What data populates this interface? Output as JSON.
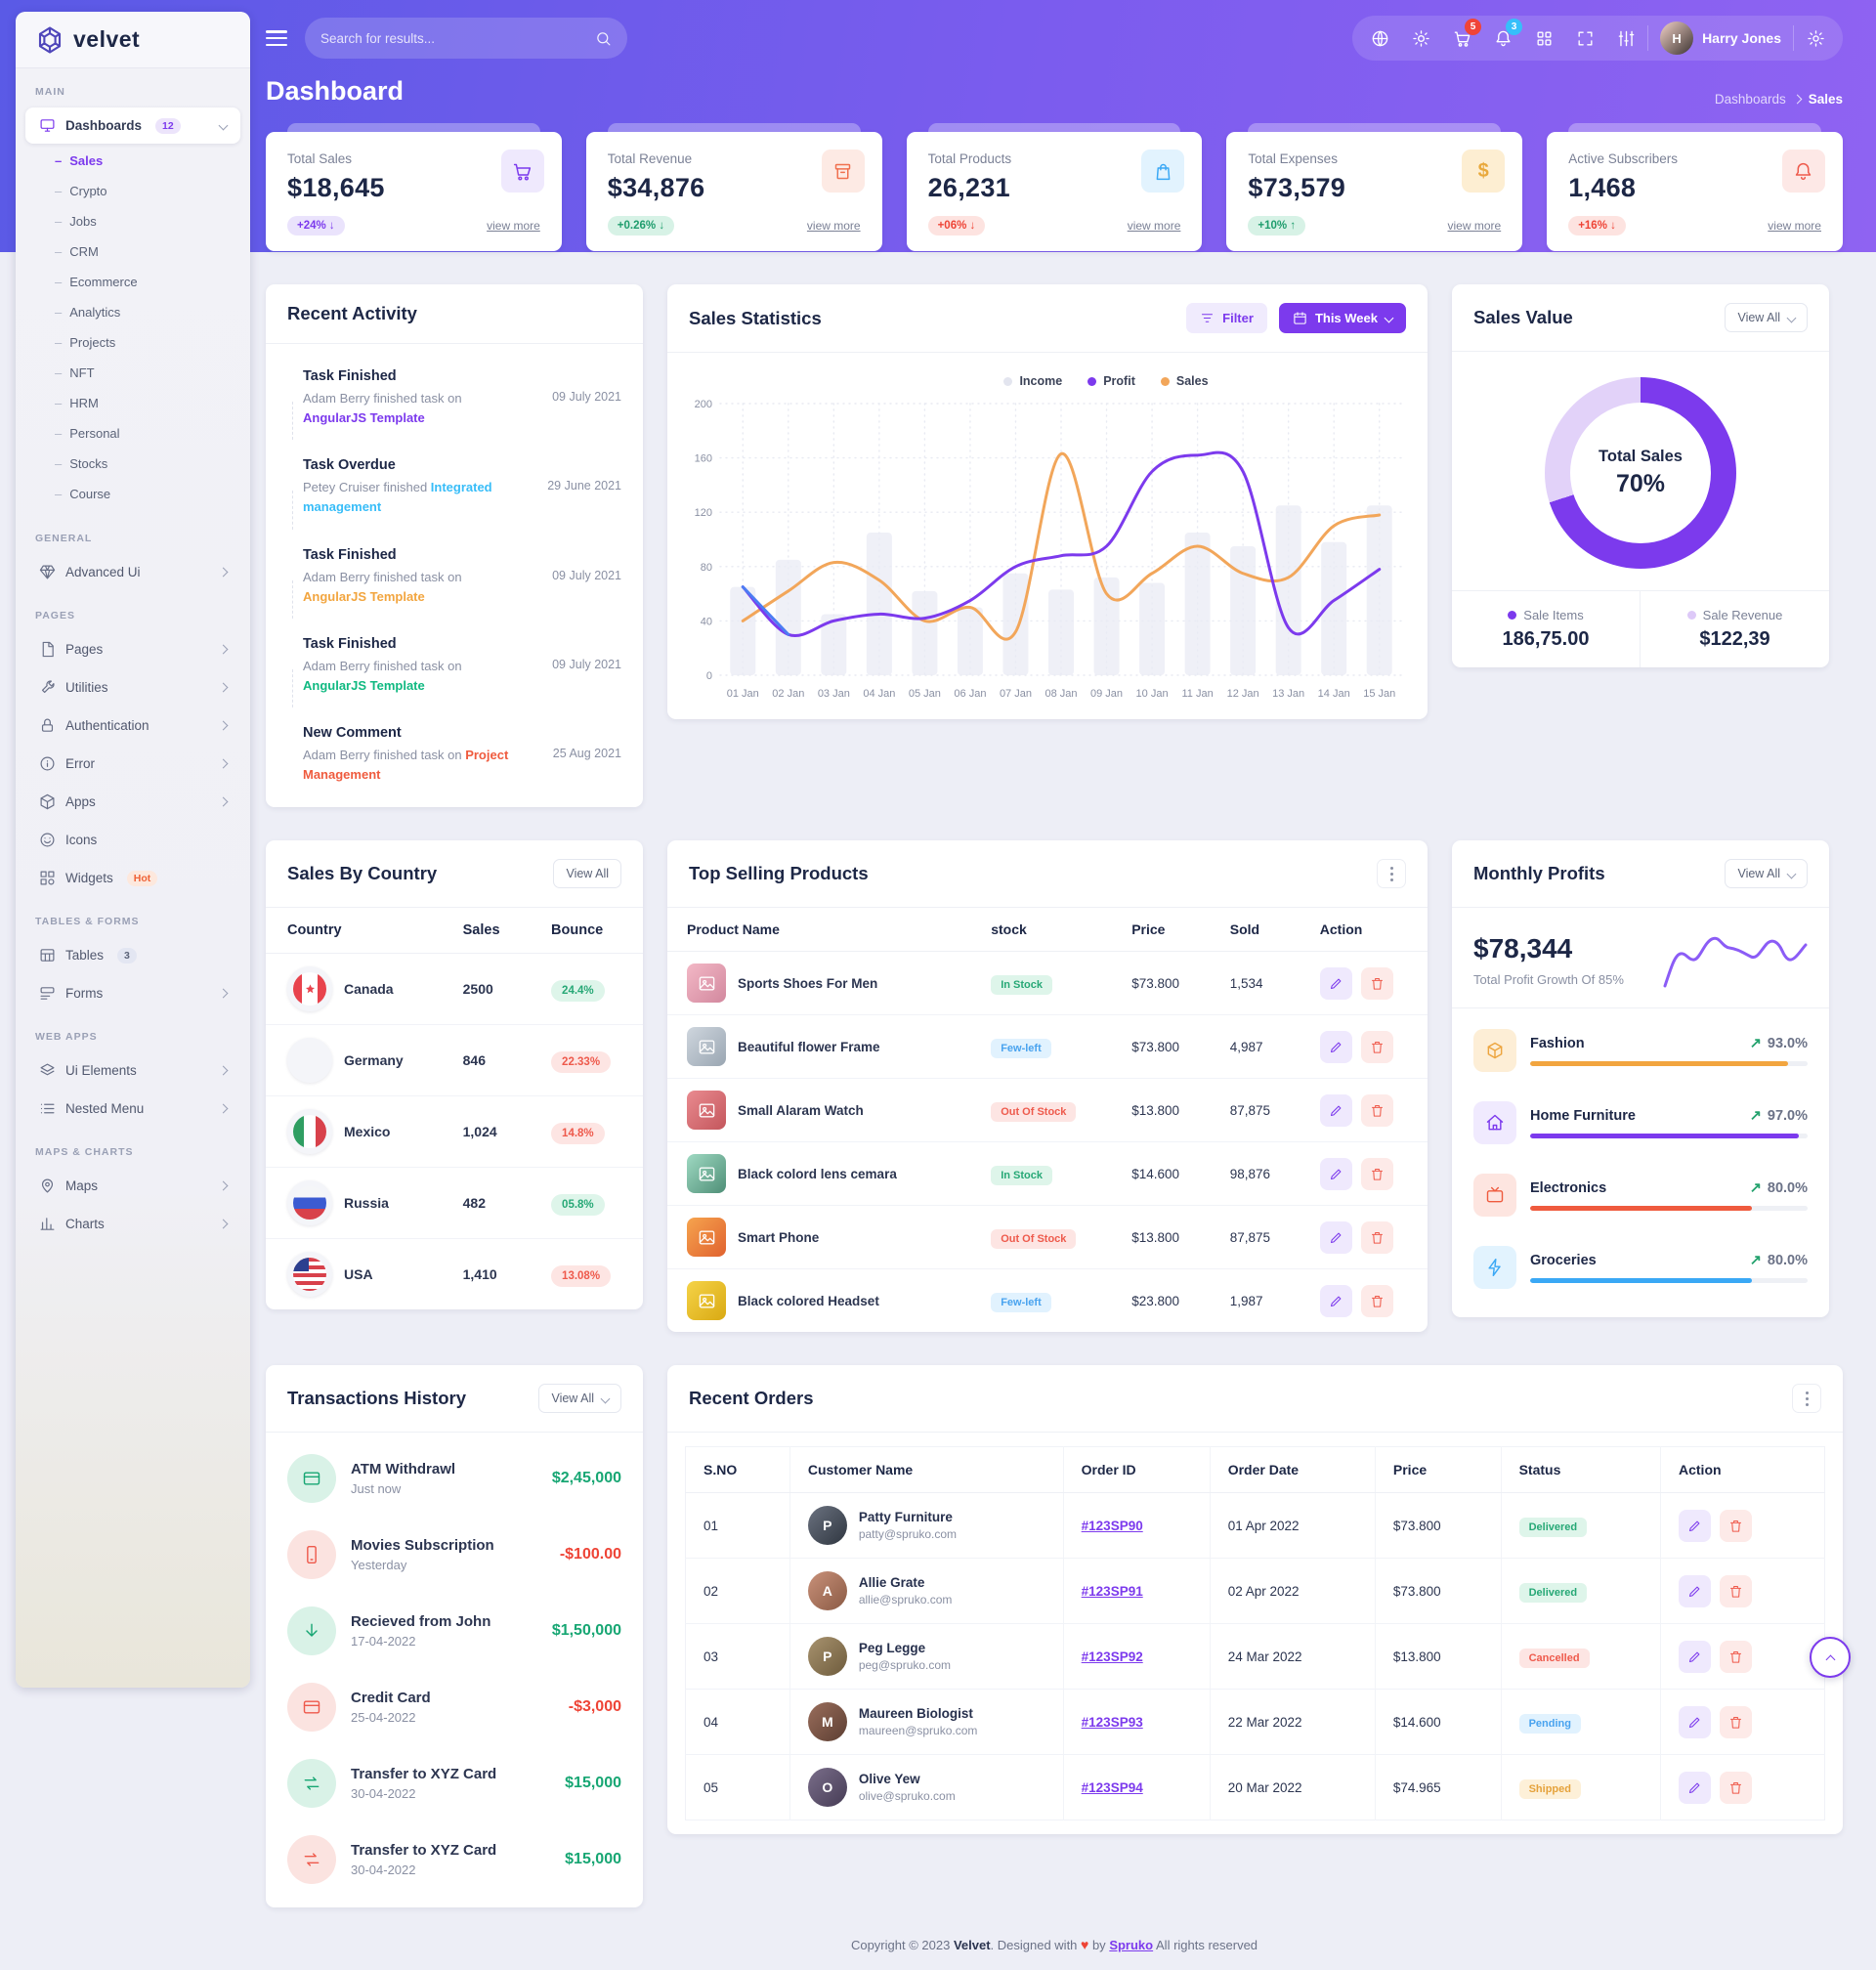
{
  "app": {
    "brand": "velvet"
  },
  "navbar": {
    "search_placeholder": "Search for results...",
    "cart_badge": "5",
    "bell_badge": "3",
    "user_name": "Harry Jones"
  },
  "page": {
    "title": "Dashboard",
    "breadcrumb_parent": "Dashboards",
    "breadcrumb_current": "Sales"
  },
  "sidebar": {
    "main_label": "MAIN",
    "dashboards": "Dashboards",
    "dashboards_badge": "12",
    "subs": [
      "Sales",
      "Crypto",
      "Jobs",
      "CRM",
      "Ecommerce",
      "Analytics",
      "Projects",
      "NFT",
      "HRM",
      "Personal",
      "Stocks",
      "Course"
    ],
    "general_label": "GENERAL",
    "advanced": "Advanced Ui",
    "pages_label": "PAGES",
    "pages": [
      "Pages",
      "Utilities",
      "Authentication",
      "Error",
      "Apps",
      "Icons",
      "Widgets"
    ],
    "hot": "Hot",
    "tables_label": "TABLES & FORMS",
    "tables": "Tables",
    "tables_badge": "3",
    "forms": "Forms",
    "webapps_label": "WEB APPS",
    "ui_elements": "Ui Elements",
    "nested": "Nested Menu",
    "maps_label": "MAPS & CHARTS",
    "maps": "Maps",
    "charts": "Charts"
  },
  "stats": [
    {
      "label": "Total Sales",
      "value": "$18,645",
      "delta": "+24% ↓",
      "link": "view more"
    },
    {
      "label": "Total Revenue",
      "value": "$34,876",
      "delta": "+0.26% ↓",
      "link": "view more"
    },
    {
      "label": "Total Products",
      "value": "26,231",
      "delta": "+06% ↓",
      "link": "view more"
    },
    {
      "label": "Total Expenses",
      "value": "$73,579",
      "delta": "+10% ↑",
      "link": "view more"
    },
    {
      "label": "Active Subscribers",
      "value": "1,468",
      "delta": "+16% ↓",
      "link": "view more"
    }
  ],
  "recent_activity": {
    "title": "Recent Activity",
    "items": [
      {
        "title": "Task Finished",
        "text": "Adam Berry finished task on ",
        "keyword": "AngularJS Template",
        "date": "09 July 2021"
      },
      {
        "title": "Task Overdue",
        "text": "Petey Cruiser finished ",
        "keyword": "Integrated management",
        "date": "29 June 2021"
      },
      {
        "title": "Task Finished",
        "text": "Adam Berry finished task on ",
        "keyword": "AngularJS Template",
        "date": "09 July 2021"
      },
      {
        "title": "Task Finished",
        "text": "Adam Berry finished task on ",
        "keyword": "AngularJS Template",
        "date": "09 July 2021"
      },
      {
        "title": "New Comment",
        "text": "Adam Berry finished task on ",
        "keyword": "Project Management",
        "date": "25 Aug 2021"
      }
    ]
  },
  "sales_statistics": {
    "title": "Sales Statistics",
    "filter_label": "Filter",
    "range_label": "This Week",
    "legend": [
      "Income",
      "Profit",
      "Sales"
    ]
  },
  "sales_value": {
    "title": "Sales Value",
    "view_all": "View All",
    "center_label": "Total Sales",
    "center_value": "70%",
    "items_label": "Sale Items",
    "items_value": "186,75.00",
    "revenue_label": "Sale Revenue",
    "revenue_value": "$122,39"
  },
  "sales_by_country": {
    "title": "Sales By Country",
    "view_all": "View All",
    "headers": [
      "Country",
      "Sales",
      "Bounce"
    ],
    "rows": [
      {
        "country": "Canada",
        "sales": "2500",
        "bounce": "24.4%"
      },
      {
        "country": "Germany",
        "sales": "846",
        "bounce": "22.33%"
      },
      {
        "country": "Mexico",
        "sales": "1,024",
        "bounce": "14.8%"
      },
      {
        "country": "Russia",
        "sales": "482",
        "bounce": "05.8%"
      },
      {
        "country": "USA",
        "sales": "1,410",
        "bounce": "13.08%"
      }
    ]
  },
  "top_selling": {
    "title": "Top Selling Products",
    "headers": [
      "Product Name",
      "stock",
      "Price",
      "Sold",
      "Action"
    ],
    "rows": [
      {
        "name": "Sports Shoes For Men",
        "stock": "In Stock",
        "price": "$73.800",
        "sold": "1,534"
      },
      {
        "name": "Beautiful flower Frame",
        "stock": "Few-left",
        "price": "$73.800",
        "sold": "4,987"
      },
      {
        "name": "Small Alaram Watch",
        "stock": "Out Of Stock",
        "price": "$13.800",
        "sold": "87,875"
      },
      {
        "name": "Black colord lens cemara",
        "stock": "In Stock",
        "price": "$14.600",
        "sold": "98,876"
      },
      {
        "name": "Smart Phone",
        "stock": "Out Of Stock",
        "price": "$13.800",
        "sold": "87,875"
      },
      {
        "name": "Black colored Headset",
        "stock": "Few-left",
        "price": "$23.800",
        "sold": "1,987"
      }
    ]
  },
  "monthly_profits": {
    "title": "Monthly Profits",
    "view_all": "View All",
    "amount": "$78,344",
    "subtitle": "Total Profit Growth Of 85%",
    "rows": [
      {
        "name": "Fashion",
        "pct": "93.0%"
      },
      {
        "name": "Home Furniture",
        "pct": "97.0%"
      },
      {
        "name": "Electronics",
        "pct": "80.0%"
      },
      {
        "name": "Groceries",
        "pct": "80.0%"
      }
    ]
  },
  "transactions": {
    "title": "Transactions History",
    "view_all": "View All",
    "rows": [
      {
        "name": "ATM Withdrawl",
        "date": "Just now",
        "amount": "$2,45,000"
      },
      {
        "name": "Movies Subscription",
        "date": "Yesterday",
        "amount": "-$100.00"
      },
      {
        "name": "Recieved from John",
        "date": "17-04-2022",
        "amount": "$1,50,000"
      },
      {
        "name": "Credit Card",
        "date": "25-04-2022",
        "amount": "-$3,000"
      },
      {
        "name": "Transfer to XYZ Card",
        "date": "30-04-2022",
        "amount": "$15,000"
      },
      {
        "name": "Transfer to XYZ Card",
        "date": "30-04-2022",
        "amount": "$15,000"
      }
    ]
  },
  "recent_orders": {
    "title": "Recent Orders",
    "headers": [
      "S.NO",
      "Customer Name",
      "Order ID",
      "Order Date",
      "Price",
      "Status",
      "Action"
    ],
    "rows": [
      {
        "sno": "01",
        "name": "Patty Furniture",
        "email": "patty@spruko.com",
        "order_id": "#123SP90",
        "date": "01 Apr 2022",
        "price": "$73.800",
        "status": "Delivered"
      },
      {
        "sno": "02",
        "name": "Allie Grate",
        "email": "allie@spruko.com",
        "order_id": "#123SP91",
        "date": "02 Apr 2022",
        "price": "$73.800",
        "status": "Delivered"
      },
      {
        "sno": "03",
        "name": "Peg Legge",
        "email": "peg@spruko.com",
        "order_id": "#123SP92",
        "date": "24 Mar 2022",
        "price": "$13.800",
        "status": "Cancelled"
      },
      {
        "sno": "04",
        "name": "Maureen Biologist",
        "email": "maureen@spruko.com",
        "order_id": "#123SP93",
        "date": "22 Mar 2022",
        "price": "$14.600",
        "status": "Pending"
      },
      {
        "sno": "05",
        "name": "Olive Yew",
        "email": "olive@spruko.com",
        "order_id": "#123SP94",
        "date": "20 Mar 2022",
        "price": "$74.965",
        "status": "Shipped"
      }
    ]
  },
  "footer": {
    "copyright": "Copyright © 2023 ",
    "brand": "Velvet",
    "designed": ". Designed with ",
    "heart": "♥",
    "by": " by ",
    "spruko": "Spruko",
    "rights": " All rights reserved"
  },
  "chart_data": [
    {
      "id": "sales_statistics",
      "type": "line",
      "x": [
        "01 Jan",
        "02 Jan",
        "03 Jan",
        "04 Jan",
        "05 Jan",
        "06 Jan",
        "07 Jan",
        "08 Jan",
        "09 Jan",
        "10 Jan",
        "11 Jan",
        "12 Jan",
        "13 Jan",
        "14 Jan",
        "15 Jan"
      ],
      "series": [
        {
          "name": "Income",
          "type": "bar",
          "values": [
            65,
            85,
            45,
            105,
            62,
            50,
            75,
            63,
            72,
            68,
            105,
            95,
            125,
            98,
            125
          ]
        },
        {
          "name": "Profit",
          "type": "line",
          "values": [
            65,
            30,
            40,
            45,
            42,
            55,
            80,
            88,
            95,
            150,
            162,
            150,
            35,
            55,
            78
          ]
        },
        {
          "name": "Sales",
          "type": "line",
          "values": [
            40,
            62,
            83,
            70,
            40,
            50,
            32,
            163,
            60,
            75,
            95,
            75,
            72,
            110,
            118
          ]
        }
      ],
      "ylim": [
        0,
        200
      ],
      "yticks": [
        0,
        40,
        80,
        120,
        160,
        200
      ],
      "legend_position": "top",
      "grid": true
    },
    {
      "id": "sales_value_donut",
      "type": "pie",
      "labels": [
        "Sale Items",
        "Sale Revenue"
      ],
      "values": [
        70,
        30
      ],
      "title": "Total Sales 70%"
    },
    {
      "id": "monthly_profits_progress",
      "type": "bar",
      "categories": [
        "Fashion",
        "Home Furniture",
        "Electronics",
        "Groceries"
      ],
      "values": [
        93,
        97,
        80,
        80
      ],
      "ylim": [
        0,
        100
      ]
    }
  ],
  "colors": {
    "accent": "#7c3aed",
    "accent_light": "#e2d2f9",
    "header_gradient_start": "#5a5ae6",
    "header_gradient_end": "#8f63f2",
    "success": "#23a26d",
    "danger": "#ee4436",
    "warning": "#f2a53f",
    "info": "#3aa8f5",
    "profit_line": "#7c3aed",
    "profit_line_start": "#4c7cf3",
    "sales_line": "#f2a65a",
    "income_bar": "#e9ebf4"
  }
}
